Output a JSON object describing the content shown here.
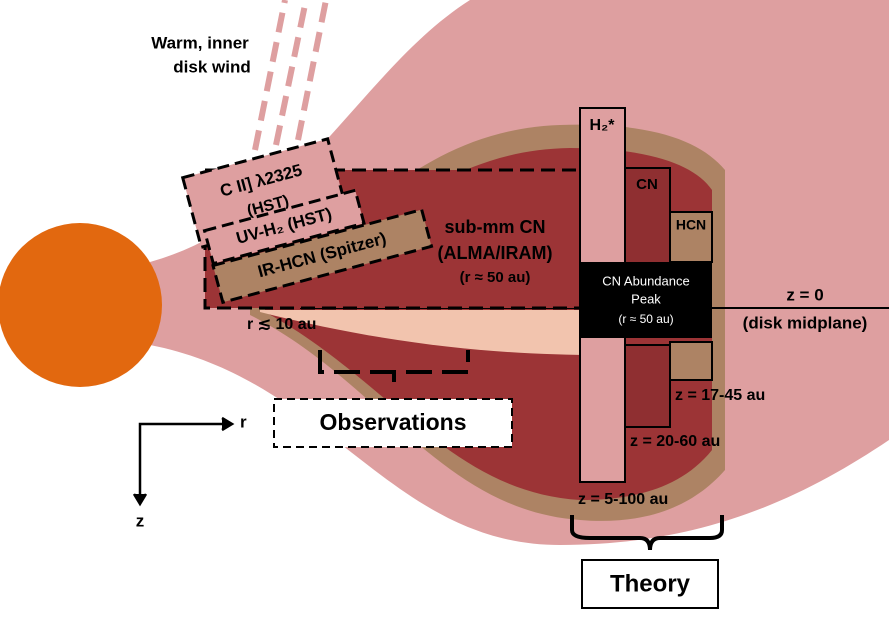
{
  "wind_label": [
    "Warm, inner",
    "disk wind"
  ],
  "boxes": {
    "c_ii": [
      "C II] λ2325",
      "(HST)"
    ],
    "uv_h2": "UV-H₂ (HST)",
    "ir_hcn": "IR-HCN (Spitzer)",
    "submm_cn": [
      "sub-mm CN",
      "(ALMA/IRAM)",
      "(r ≈ 50 au)"
    ],
    "h2": "H₂*",
    "cn": "CN",
    "hcn": "HCN",
    "cn_peak": [
      "CN Abundance",
      "Peak",
      "(r ≈ 50 au)"
    ]
  },
  "midplane": [
    "z = 0",
    "(disk midplane)"
  ],
  "inner_radius": "r ≲ 10 au",
  "observations": "Observations",
  "theory": "Theory",
  "heights": [
    "z = 17-45 au",
    "z = 20-60 au",
    "z = 5-100 au"
  ],
  "axes": {
    "r": "r",
    "z": "z"
  }
}
